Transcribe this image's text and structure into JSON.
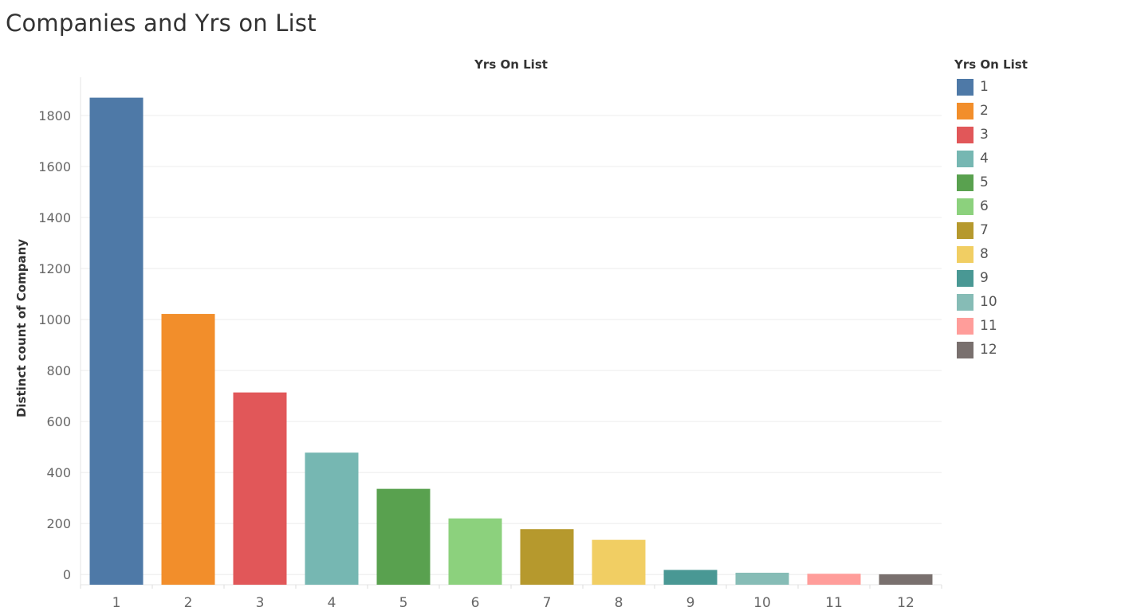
{
  "page": {
    "title": "Companies and Yrs on List"
  },
  "chart_data": {
    "type": "bar",
    "title": "Companies and Yrs on List",
    "column_header": "Yrs On List",
    "xlabel": "",
    "ylabel": "Distinct count of Company",
    "categories": [
      "1",
      "2",
      "3",
      "4",
      "5",
      "6",
      "7",
      "8",
      "9",
      "10",
      "11",
      "12"
    ],
    "values": [
      1870,
      1022,
      714,
      478,
      336,
      220,
      178,
      136,
      18,
      7,
      3,
      1
    ],
    "colors": [
      "#4e79a7",
      "#f28e2b",
      "#e15759",
      "#76b7b2",
      "#59a14f",
      "#8cd17d",
      "#b6992d",
      "#f1ce63",
      "#499894",
      "#86bcb6",
      "#ff9d9a",
      "#79706e"
    ],
    "ylim": [
      -40,
      1950
    ],
    "yticks": [
      0,
      200,
      400,
      600,
      800,
      1000,
      1200,
      1400,
      1600,
      1800
    ],
    "grid": true,
    "legend": {
      "title": "Yrs On List",
      "placement": "right",
      "items": [
        "1",
        "2",
        "3",
        "4",
        "5",
        "6",
        "7",
        "8",
        "9",
        "10",
        "11",
        "12"
      ]
    }
  }
}
